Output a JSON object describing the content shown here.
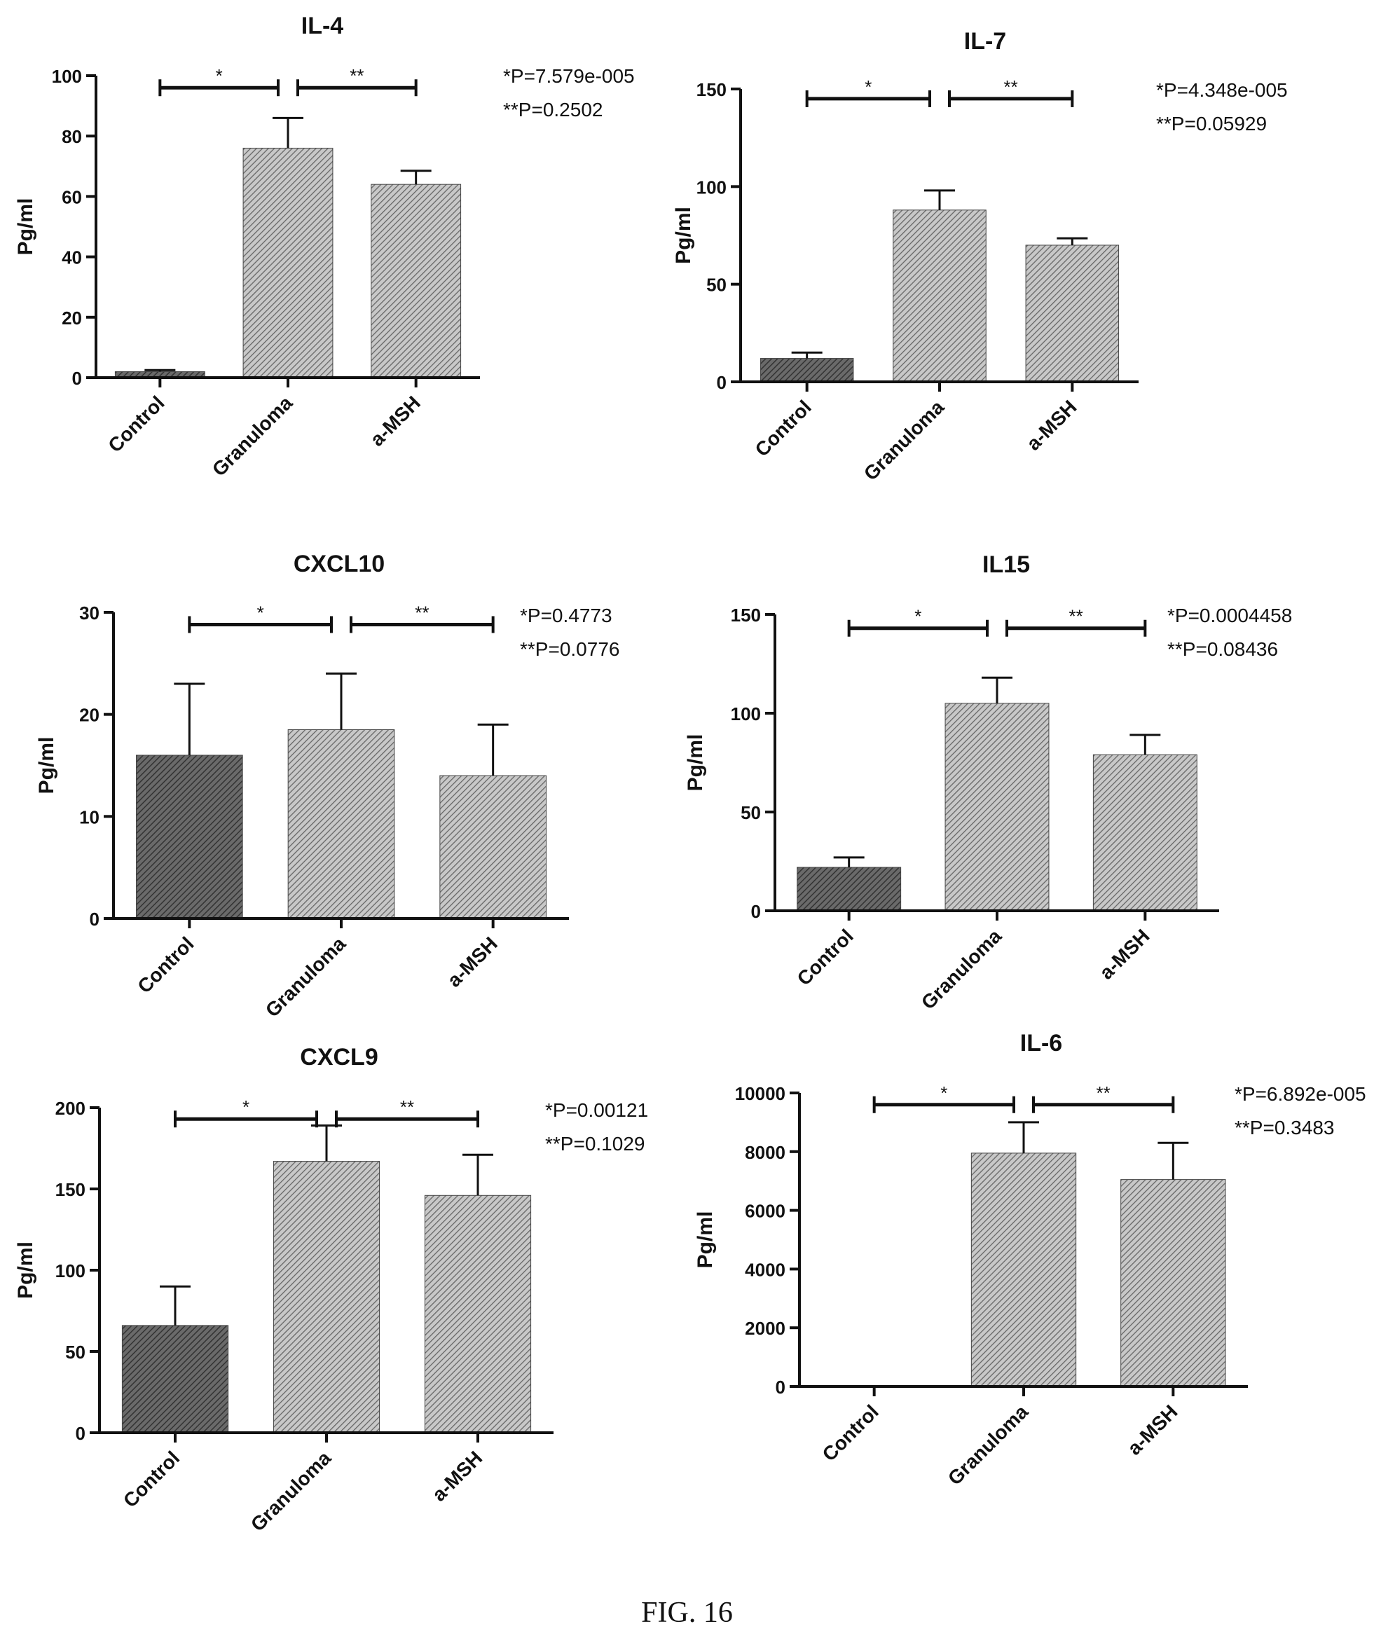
{
  "figure": {
    "caption": "FIG. 16"
  },
  "colors": {
    "ink": "#111111",
    "bar_fill_dark": "#555555",
    "bar_fill_light": "#9a9a9a"
  },
  "chart_data": [
    {
      "type": "bar",
      "title": "IL-4",
      "ylabel": "Pg/ml",
      "categories": [
        "Control",
        "Granuloma",
        "a-MSH"
      ],
      "values": [
        2,
        76,
        64
      ],
      "errors": [
        0.5,
        10,
        4.5
      ],
      "ylim": [
        0,
        100
      ],
      "yticks": [
        0,
        20,
        40,
        60,
        80,
        100
      ],
      "comparisons": [
        {
          "label": "*",
          "from": "Control",
          "to": "Granuloma",
          "y": 96
        },
        {
          "label": "**",
          "from": "Granuloma",
          "to": "a-MSH",
          "y": 96
        }
      ],
      "annotations": [
        "*P=7.579e-005",
        "**P=0.2502"
      ]
    },
    {
      "type": "bar",
      "title": "IL-7",
      "ylabel": "Pg/ml",
      "categories": [
        "Control",
        "Granuloma",
        "a-MSH"
      ],
      "values": [
        12,
        88,
        70
      ],
      "errors": [
        3,
        10,
        3.5
      ],
      "ylim": [
        0,
        150
      ],
      "yticks": [
        0,
        50,
        100,
        150
      ],
      "comparisons": [
        {
          "label": "*",
          "from": "Control",
          "to": "Granuloma",
          "y": 145
        },
        {
          "label": "**",
          "from": "Granuloma",
          "to": "a-MSH",
          "y": 145
        }
      ],
      "annotations": [
        "*P=4.348e-005",
        "**P=0.05929"
      ]
    },
    {
      "type": "bar",
      "title": "CXCL10",
      "ylabel": "Pg/ml",
      "categories": [
        "Control",
        "Granuloma",
        "a-MSH"
      ],
      "values": [
        16,
        18.5,
        14
      ],
      "errors": [
        7,
        5.5,
        5
      ],
      "ylim": [
        0,
        30
      ],
      "yticks": [
        0,
        10,
        20,
        30
      ],
      "comparisons": [
        {
          "label": "*",
          "from": "Control",
          "to": "Granuloma",
          "y": 28.8
        },
        {
          "label": "**",
          "from": "Granuloma",
          "to": "a-MSH",
          "y": 28.8
        }
      ],
      "annotations": [
        "*P=0.4773",
        "**P=0.0776"
      ]
    },
    {
      "type": "bar",
      "title": "IL15",
      "ylabel": "Pg/ml",
      "categories": [
        "Control",
        "Granuloma",
        "a-MSH"
      ],
      "values": [
        22,
        105,
        79
      ],
      "errors": [
        5,
        13,
        10
      ],
      "ylim": [
        0,
        150
      ],
      "yticks": [
        0,
        50,
        100,
        150
      ],
      "comparisons": [
        {
          "label": "*",
          "from": "Control",
          "to": "Granuloma",
          "y": 143
        },
        {
          "label": "**",
          "from": "Granuloma",
          "to": "a-MSH",
          "y": 143
        }
      ],
      "annotations": [
        "*P=0.0004458",
        "**P=0.08436"
      ]
    },
    {
      "type": "bar",
      "title": "CXCL9",
      "ylabel": "Pg/ml",
      "categories": [
        "Control",
        "Granuloma",
        "a-MSH"
      ],
      "values": [
        66,
        167,
        146
      ],
      "errors": [
        24,
        22,
        25
      ],
      "ylim": [
        0,
        200
      ],
      "yticks": [
        0,
        50,
        100,
        150,
        200
      ],
      "comparisons": [
        {
          "label": "*",
          "from": "Control",
          "to": "Granuloma",
          "y": 193
        },
        {
          "label": "**",
          "from": "Granuloma",
          "to": "a-MSH",
          "y": 193
        }
      ],
      "annotations": [
        "*P=0.00121",
        "**P=0.1029"
      ]
    },
    {
      "type": "bar",
      "title": "IL-6",
      "ylabel": "Pg/ml",
      "categories": [
        "Control",
        "Granuloma",
        "a-MSH"
      ],
      "values": [
        0,
        7950,
        7050
      ],
      "errors": [
        0,
        1050,
        1250
      ],
      "ylim": [
        0,
        10000
      ],
      "yticks": [
        0,
        2000,
        4000,
        6000,
        8000,
        10000
      ],
      "comparisons": [
        {
          "label": "*",
          "from": "Control",
          "to": "Granuloma",
          "y": 9600
        },
        {
          "label": "**",
          "from": "Granuloma",
          "to": "a-MSH",
          "y": 9600
        }
      ],
      "annotations": [
        "*P=6.892e-005",
        "**P=0.3483"
      ]
    }
  ]
}
